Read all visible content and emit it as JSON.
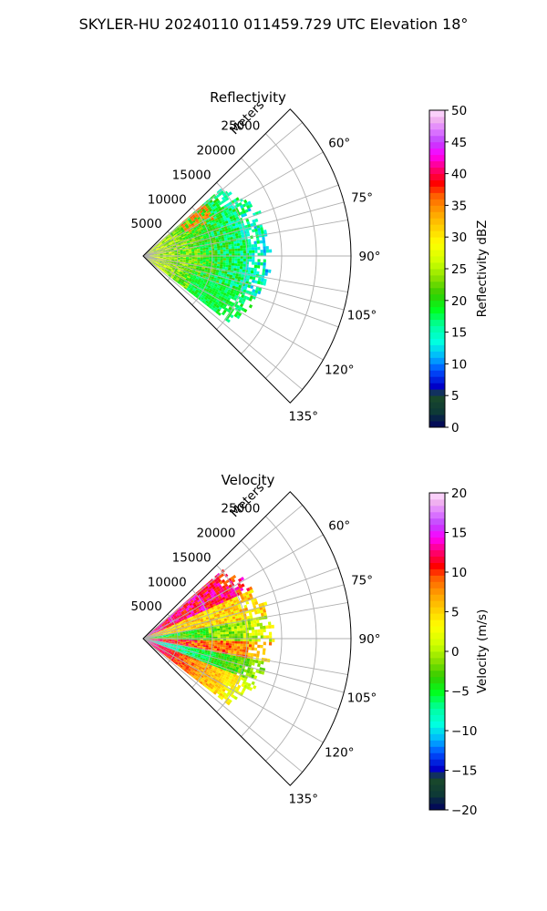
{
  "figure": {
    "suptitle": "SKYLER-HU  20240110  011459.729 UTC Elevation 18°"
  },
  "chart_data": [
    {
      "type": "heatmap",
      "subtype": "polar-sector",
      "title": "Reflectivity",
      "range_label": "Meters",
      "range_ticks": [
        5000,
        10000,
        15000,
        20000,
        25000
      ],
      "range_tick_labels": [
        "5000",
        "10000",
        "15000",
        "20000",
        "25000"
      ],
      "range_max": 30000,
      "azimuth_range_deg": [
        45,
        135
      ],
      "azimuth_ticks": [
        60,
        75,
        90,
        105,
        120,
        135
      ],
      "azimuth_tick_labels": [
        "60°",
        "75°",
        "90°",
        "105°",
        "120°",
        "135°"
      ],
      "grid": true,
      "colorbar": {
        "label": "Reflectivity dBZ",
        "min": 0,
        "max": 50,
        "ticks": [
          0,
          5,
          10,
          15,
          20,
          25,
          30,
          35,
          40,
          45,
          50
        ],
        "tick_labels": [
          "0",
          "5",
          "10",
          "15",
          "20",
          "25",
          "30",
          "35",
          "40",
          "45",
          "50"
        ]
      },
      "data_extent": {
        "max_range_m": 19000,
        "azimuth_deg": [
          49,
          128
        ]
      },
      "dominant_values_dbz": [
        15,
        18,
        20,
        25,
        33
      ]
    },
    {
      "type": "heatmap",
      "subtype": "polar-sector",
      "title": "Velocity",
      "range_label": "Meters",
      "range_ticks": [
        5000,
        10000,
        15000,
        20000,
        25000
      ],
      "range_tick_labels": [
        "5000",
        "10000",
        "15000",
        "20000",
        "25000"
      ],
      "range_max": 30000,
      "azimuth_range_deg": [
        45,
        135
      ],
      "azimuth_ticks": [
        60,
        75,
        90,
        105,
        120,
        135
      ],
      "azimuth_tick_labels": [
        "60°",
        "75°",
        "90°",
        "105°",
        "120°",
        "135°"
      ],
      "grid": true,
      "colorbar": {
        "label": "Velocity (m/s)",
        "min": -20,
        "max": 20,
        "ticks": [
          -20,
          -15,
          -10,
          -5,
          0,
          5,
          10,
          15,
          20
        ],
        "tick_labels": [
          "−20",
          "−15",
          "−10",
          "−5",
          "0",
          "5",
          "10",
          "15",
          "20"
        ]
      },
      "data_extent": {
        "max_range_m": 19000,
        "azimuth_deg": [
          49,
          128
        ]
      },
      "dominant_values_ms": [
        -10,
        -5,
        0,
        8,
        12,
        17
      ]
    }
  ]
}
